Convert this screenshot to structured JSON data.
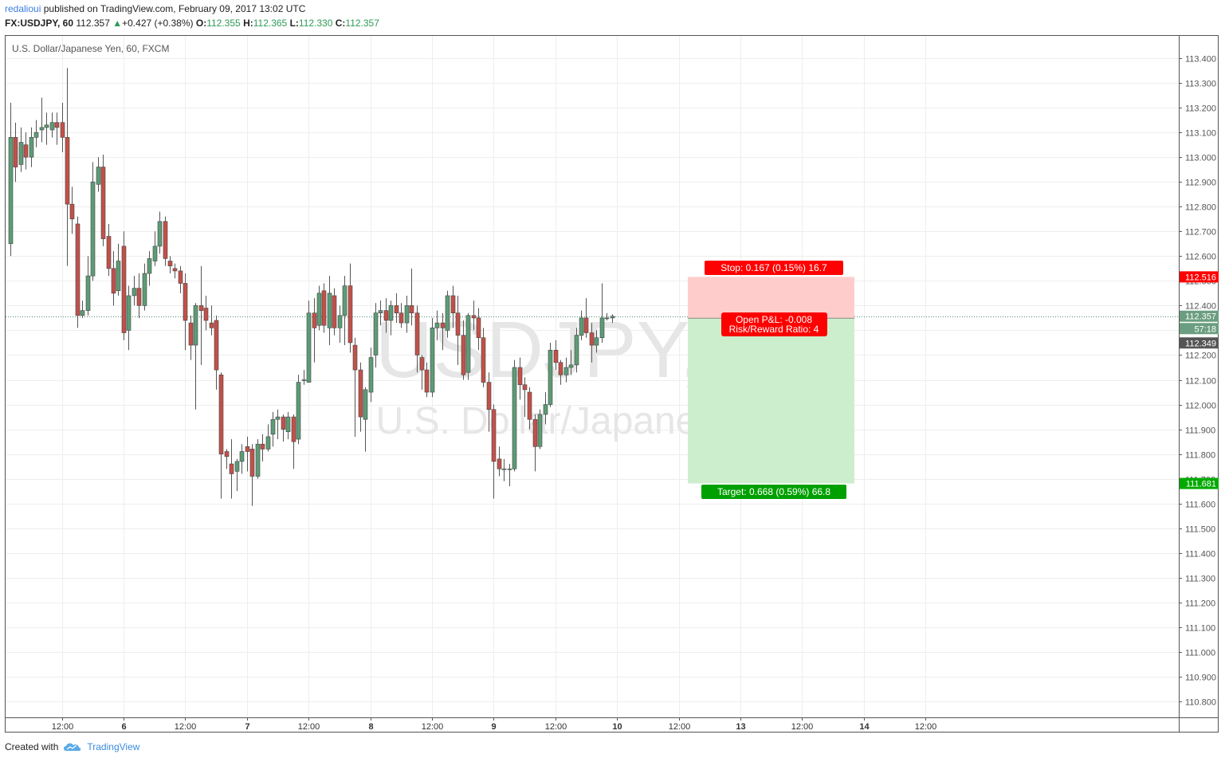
{
  "header": {
    "author": "redalioui",
    "published": "published on TradingView.com, February 09, 2017 13:02 UTC",
    "symbol": "FX:USDJPY, 60",
    "last": "112.357",
    "change": "+0.427 (+0.38%)",
    "o_label": "O:",
    "o": "112.355",
    "h_label": "H:",
    "h": "112.365",
    "l_label": "L:",
    "l": "112.330",
    "c_label": "C:",
    "c": "112.357"
  },
  "footer": {
    "created_with": "Created with",
    "brand": "TradingView"
  },
  "colors": {
    "up": "#5c9c76",
    "down": "#c25149",
    "grid": "#eeeeee",
    "brand": "#3a8be0"
  },
  "chart_data": {
    "type": "candlestick",
    "title": "U.S. Dollar/Japanese Yen, 60, FXCM",
    "watermark_symbol": "USDJPY, 60",
    "watermark_name": "U.S. Dollar/Japanese Yen",
    "ylim": [
      110.75,
      113.45
    ],
    "y_ticks": [
      "110.800",
      "110.900",
      "111.000",
      "111.100",
      "111.200",
      "111.300",
      "111.400",
      "111.500",
      "111.600",
      "111.700",
      "111.800",
      "111.900",
      "112.000",
      "112.100",
      "112.200",
      "112.300",
      "112.400",
      "112.500",
      "112.600",
      "112.700",
      "112.800",
      "112.900",
      "113.000",
      "113.100",
      "113.200",
      "113.300",
      "113.400"
    ],
    "x_ticks": [
      "12:00",
      "6",
      "12:00",
      "7",
      "12:00",
      "8",
      "12:00",
      "9",
      "12:00",
      "10",
      "12:00",
      "13",
      "12:00",
      "14",
      "12:00"
    ],
    "x_tick_bold": [
      false,
      true,
      false,
      true,
      false,
      true,
      false,
      true,
      false,
      true,
      false,
      true,
      false,
      true,
      false
    ],
    "x_tick_index": [
      10,
      22,
      34,
      46,
      58,
      70,
      82,
      94,
      106,
      118,
      130,
      142,
      154,
      166,
      178
    ],
    "current_price": 112.357,
    "grid": true,
    "candles": [
      [
        112.65,
        113.08,
        113.22,
        112.6
      ],
      [
        113.08,
        112.96,
        113.14,
        112.9
      ],
      [
        112.97,
        113.06,
        113.12,
        112.94
      ],
      [
        113.05,
        113.0,
        113.1,
        112.95
      ],
      [
        113.0,
        113.08,
        113.12,
        112.96
      ],
      [
        113.08,
        113.1,
        113.15,
        113.04
      ],
      [
        113.11,
        113.12,
        113.24,
        113.06
      ],
      [
        113.12,
        113.13,
        113.18,
        113.05
      ],
      [
        113.11,
        113.14,
        113.18,
        113.08
      ],
      [
        113.14,
        113.12,
        113.18,
        113.05
      ],
      [
        113.14,
        113.08,
        113.22,
        113.02
      ],
      [
        113.08,
        112.81,
        113.36,
        112.56
      ],
      [
        112.81,
        112.75,
        112.88,
        112.69
      ],
      [
        112.73,
        112.36,
        112.76,
        112.31
      ],
      [
        112.36,
        112.38,
        112.42,
        112.35
      ],
      [
        112.38,
        112.52,
        112.6,
        112.36
      ],
      [
        112.52,
        112.9,
        112.98,
        112.5
      ],
      [
        112.89,
        112.96,
        113.0,
        112.86
      ],
      [
        112.96,
        112.67,
        113.01,
        112.64
      ],
      [
        112.68,
        112.55,
        112.73,
        112.52
      ],
      [
        112.55,
        112.45,
        112.62,
        112.4
      ],
      [
        112.46,
        112.58,
        112.65,
        112.44
      ],
      [
        112.64,
        112.29,
        112.7,
        112.26
      ],
      [
        112.3,
        112.44,
        112.48,
        112.22
      ],
      [
        112.44,
        112.47,
        112.52,
        112.4
      ],
      [
        112.47,
        112.4,
        112.53,
        112.35
      ],
      [
        112.4,
        112.53,
        112.57,
        112.38
      ],
      [
        112.53,
        112.59,
        112.62,
        112.48
      ],
      [
        112.58,
        112.64,
        112.7,
        112.56
      ],
      [
        112.64,
        112.74,
        112.78,
        112.61
      ],
      [
        112.74,
        112.59,
        112.76,
        112.56
      ],
      [
        112.58,
        112.56,
        112.6,
        112.53
      ],
      [
        112.55,
        112.54,
        112.57,
        112.51
      ],
      [
        112.54,
        112.49,
        112.56,
        112.45
      ],
      [
        112.49,
        112.34,
        112.53,
        112.22
      ],
      [
        112.33,
        112.24,
        112.36,
        112.18
      ],
      [
        112.24,
        112.4,
        112.41,
        111.98
      ],
      [
        112.4,
        112.38,
        112.56,
        112.16
      ],
      [
        112.39,
        112.34,
        112.44,
        112.3
      ],
      [
        112.33,
        112.31,
        112.4,
        112.28
      ],
      [
        112.34,
        112.14,
        112.36,
        112.06
      ],
      [
        112.12,
        111.8,
        112.13,
        111.62
      ],
      [
        111.81,
        111.79,
        111.82,
        111.74
      ],
      [
        111.76,
        111.72,
        111.86,
        111.62
      ],
      [
        111.73,
        111.77,
        111.78,
        111.65
      ],
      [
        111.77,
        111.81,
        111.84,
        111.72
      ],
      [
        111.83,
        111.81,
        111.87,
        111.73
      ],
      [
        111.82,
        111.71,
        111.84,
        111.59
      ],
      [
        111.71,
        111.84,
        111.86,
        111.7
      ],
      [
        111.84,
        111.82,
        111.88,
        111.77
      ],
      [
        111.82,
        111.87,
        111.92,
        111.81
      ],
      [
        111.88,
        111.94,
        111.97,
        111.83
      ],
      [
        111.94,
        111.95,
        111.98,
        111.86
      ],
      [
        111.95,
        111.9,
        111.96,
        111.85
      ],
      [
        111.89,
        111.95,
        111.97,
        111.86
      ],
      [
        111.95,
        111.85,
        111.96,
        111.74
      ],
      [
        111.86,
        112.09,
        112.12,
        111.84
      ],
      [
        112.1,
        112.1,
        112.14,
        112.08
      ],
      [
        112.09,
        112.37,
        112.42,
        112.09
      ],
      [
        112.37,
        112.31,
        112.43,
        112.17
      ],
      [
        112.32,
        112.45,
        112.48,
        112.3
      ],
      [
        112.46,
        112.32,
        112.49,
        112.29
      ],
      [
        112.31,
        112.45,
        112.52,
        112.24
      ],
      [
        112.44,
        112.31,
        112.47,
        112.28
      ],
      [
        112.31,
        112.36,
        112.4,
        112.25
      ],
      [
        112.36,
        112.48,
        112.52,
        112.24
      ],
      [
        112.48,
        112.25,
        112.57,
        112.21
      ],
      [
        112.24,
        112.14,
        112.27,
        111.87
      ],
      [
        112.14,
        111.95,
        112.17,
        111.89
      ],
      [
        111.94,
        112.06,
        112.07,
        111.81
      ],
      [
        112.05,
        112.19,
        112.23,
        112.01
      ],
      [
        112.2,
        112.37,
        112.41,
        112.15
      ],
      [
        112.37,
        112.38,
        112.42,
        112.32
      ],
      [
        112.38,
        112.34,
        112.43,
        112.29
      ],
      [
        112.34,
        112.4,
        112.42,
        112.28
      ],
      [
        112.4,
        112.37,
        112.45,
        112.33
      ],
      [
        112.37,
        112.33,
        112.41,
        112.31
      ],
      [
        112.33,
        112.4,
        112.44,
        112.29
      ],
      [
        112.4,
        112.37,
        112.55,
        112.32
      ],
      [
        112.37,
        112.2,
        112.4,
        112.13
      ],
      [
        112.19,
        112.14,
        112.2,
        112.06
      ],
      [
        112.14,
        112.05,
        112.17,
        112.03
      ],
      [
        112.05,
        112.31,
        112.35,
        112.03
      ],
      [
        112.31,
        112.33,
        112.38,
        112.26
      ],
      [
        112.33,
        112.31,
        112.37,
        112.22
      ],
      [
        112.3,
        112.44,
        112.46,
        112.27
      ],
      [
        112.44,
        112.37,
        112.48,
        112.31
      ],
      [
        112.37,
        112.28,
        112.44,
        112.16
      ],
      [
        112.28,
        112.12,
        112.34,
        112.1
      ],
      [
        112.13,
        112.36,
        112.37,
        112.1
      ],
      [
        112.36,
        112.35,
        112.42,
        112.3
      ],
      [
        112.35,
        112.27,
        112.39,
        112.22
      ],
      [
        112.27,
        112.09,
        112.31,
        112.07
      ],
      [
        112.09,
        111.98,
        112.13,
        111.89
      ],
      [
        111.98,
        111.77,
        112.0,
        111.62
      ],
      [
        111.78,
        111.74,
        111.83,
        111.71
      ],
      [
        111.74,
        111.74,
        111.78,
        111.69
      ],
      [
        111.74,
        111.74,
        111.76,
        111.67
      ],
      [
        111.74,
        112.15,
        112.18,
        111.73
      ],
      [
        112.15,
        112.08,
        112.19,
        112.02
      ],
      [
        112.08,
        112.06,
        112.11,
        111.95
      ],
      [
        112.05,
        111.94,
        112.07,
        111.9
      ],
      [
        111.94,
        111.83,
        111.96,
        111.73
      ],
      [
        111.83,
        111.96,
        111.98,
        111.82
      ],
      [
        111.96,
        112.0,
        112.05,
        111.92
      ],
      [
        112.0,
        112.22,
        112.25,
        111.99
      ],
      [
        112.22,
        112.17,
        112.26,
        112.14
      ],
      [
        112.17,
        112.12,
        112.18,
        112.08
      ],
      [
        112.12,
        112.15,
        112.19,
        112.09
      ],
      [
        112.15,
        112.16,
        112.22,
        112.12
      ],
      [
        112.16,
        112.28,
        112.31,
        112.13
      ],
      [
        112.28,
        112.35,
        112.38,
        112.26
      ],
      [
        112.35,
        112.29,
        112.43,
        112.27
      ],
      [
        112.29,
        112.24,
        112.33,
        112.17
      ],
      [
        112.24,
        112.27,
        112.3,
        112.21
      ],
      [
        112.27,
        112.35,
        112.49,
        112.25
      ],
      [
        112.35,
        112.35,
        112.37,
        112.34
      ],
      [
        112.35,
        112.357,
        112.365,
        112.33
      ]
    ],
    "position": {
      "type": "short",
      "entry": 112.349,
      "stop": 112.516,
      "target": 111.681,
      "stop_label": "Stop: 0.167 (0.15%) 16.7",
      "target_label": "Target: 0.668 (0.59%) 66.8",
      "pnl_label": "Open P&L: -0.008",
      "rr_label": "Risk/Reward Ratio: 4"
    },
    "price_labels": [
      {
        "text": "112.516",
        "price": 112.516,
        "bg": "#ff0000",
        "fg": "#ffffff"
      },
      {
        "text": "112.357",
        "price": 112.357,
        "bg": "#6b9e80",
        "fg": "#ffffff"
      },
      {
        "text": "57:18",
        "price": 112.307,
        "bg": "#6b9e80",
        "fg": "#ffffff"
      },
      {
        "text": "112.349",
        "price": 112.249,
        "bg": "#555555",
        "fg": "#ffffff"
      },
      {
        "text": "111.681",
        "price": 111.681,
        "bg": "#00aa00",
        "fg": "#ffffff"
      }
    ]
  }
}
